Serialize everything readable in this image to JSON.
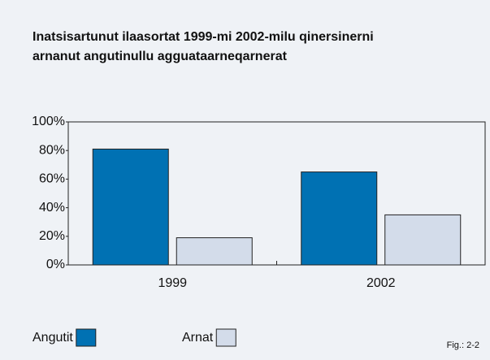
{
  "chart_data": {
    "type": "bar",
    "title": [
      "Inatsisartunut ilaasortat 1999-mi 2002-milu qinersinerni",
      "arnanut angutinullu agguataarneqarnerat"
    ],
    "categories": [
      "1999",
      "2002"
    ],
    "series": [
      {
        "name": "Angutit",
        "color": "#0071b3",
        "values": [
          81,
          65
        ]
      },
      {
        "name": "Arnat",
        "color": "#d3dcea",
        "values": [
          19,
          35
        ]
      }
    ],
    "ylim": [
      0,
      100
    ],
    "yticks": [
      {
        "value": 0,
        "label": "0%"
      },
      {
        "value": 20,
        "label": "20%"
      },
      {
        "value": 40,
        "label": "40%"
      },
      {
        "value": 60,
        "label": "60%"
      },
      {
        "value": 80,
        "label": "80%"
      },
      {
        "value": 100,
        "label": "100%"
      }
    ],
    "legend": "bottom-left",
    "note": "Fig.: 2-2"
  }
}
